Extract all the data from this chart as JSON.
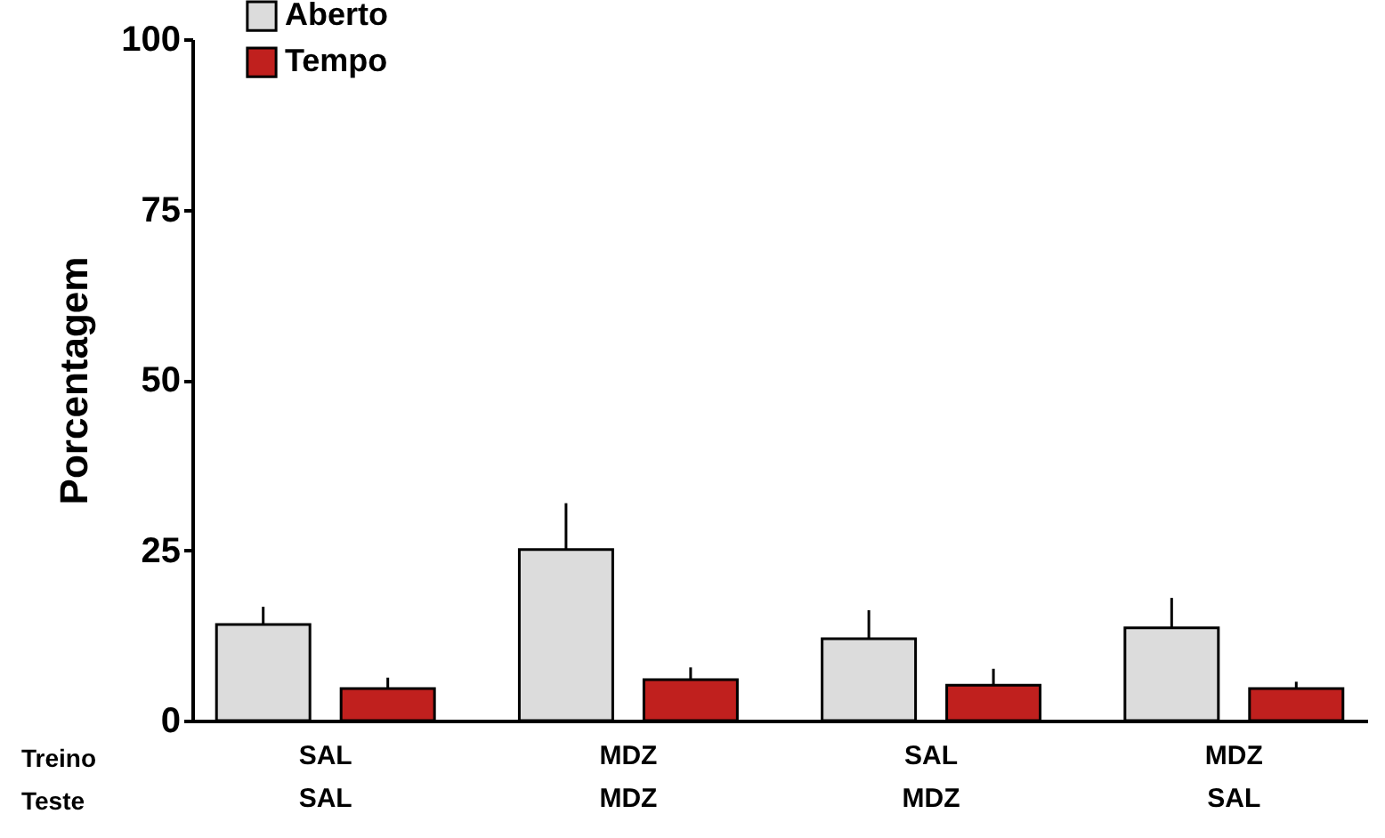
{
  "chart_data": {
    "type": "bar",
    "ylabel": "Porcentagem",
    "categories": [
      "SAL\nSAL",
      "MDZ\nMDZ",
      "SAL\nMDZ",
      "MDZ\nSAL"
    ],
    "series": [
      {
        "name": "Aberto",
        "color": "#dcdcdc",
        "values": [
          14.1,
          25.1,
          12.0,
          13.6
        ],
        "errors": [
          [
            14.1,
            16.7
          ],
          [
            25.1,
            31.9
          ],
          [
            12.0,
            16.2
          ],
          [
            13.6,
            18.0
          ]
        ]
      },
      {
        "name": "Tempo",
        "color": "#c0201e",
        "values": [
          4.7,
          6.0,
          5.2,
          4.7
        ],
        "errors": [
          [
            4.7,
            6.3
          ],
          [
            6.0,
            7.8
          ],
          [
            5.2,
            7.6
          ],
          [
            4.7,
            5.7
          ]
        ]
      }
    ],
    "ylim": [
      0,
      100
    ],
    "yticks": [
      0,
      25,
      50,
      75,
      100
    ],
    "grid": false,
    "legend": "top left",
    "annotations": [
      "Treino",
      "Teste"
    ]
  }
}
